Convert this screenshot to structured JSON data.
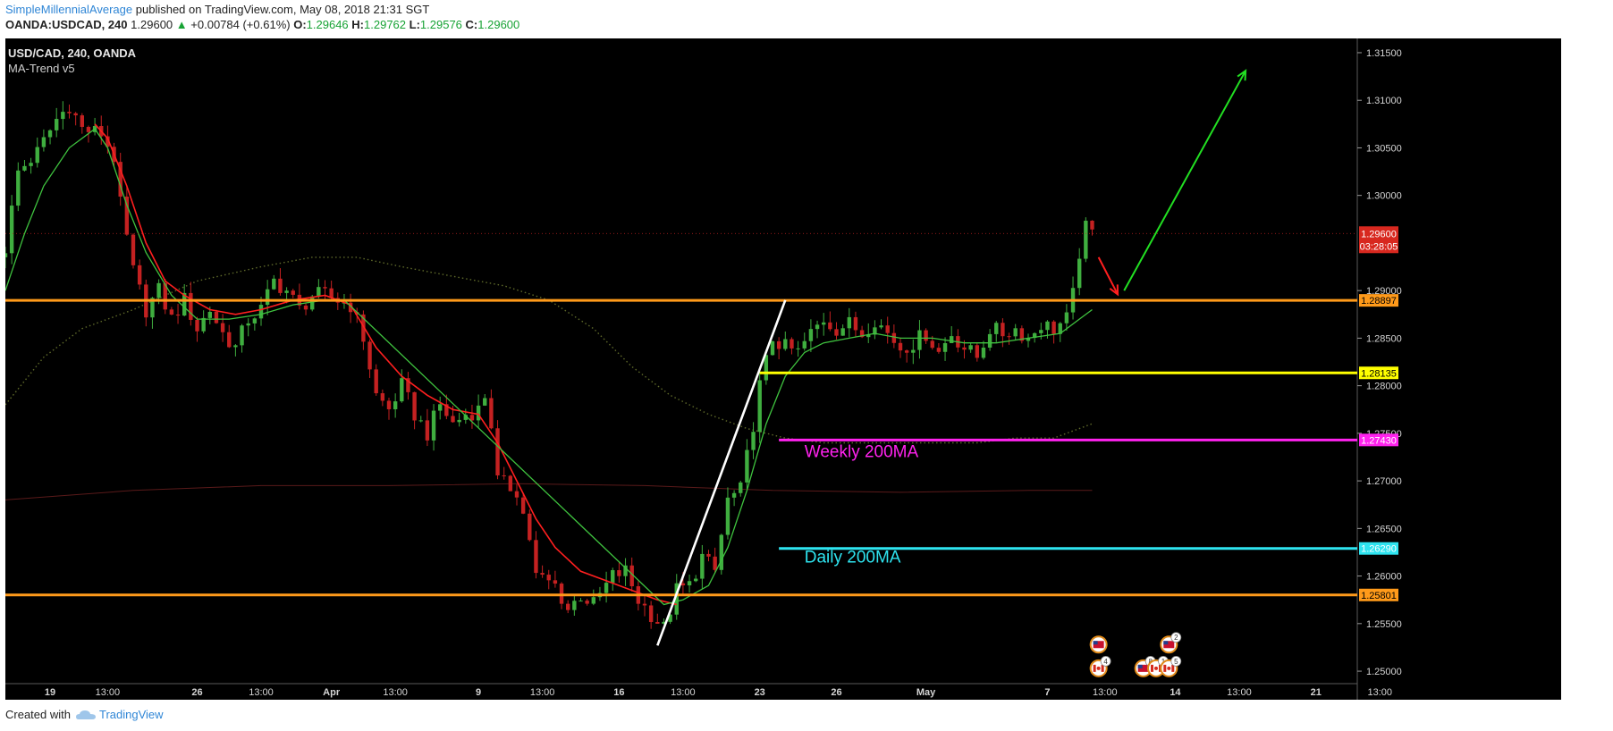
{
  "header": {
    "author": "SimpleMillennialAverage",
    "published_text": "published on TradingView.com, May 08, 2018 21:31 SGT",
    "symbol": "OANDA:USDCAD, 240",
    "last_price": "1.29600",
    "change": "+0.00784 (+0.61%)",
    "open_label": "O:",
    "open": "1.29646",
    "high_label": "H:",
    "high": "1.29762",
    "low_label": "L:",
    "low": "1.29576",
    "close_label": "C:",
    "close": "1.29600"
  },
  "chart_title": "USD/CAD, 240, OANDA",
  "indicator_name": "MA-Trend v5",
  "footer": {
    "created_with": "Created with",
    "brand": "TradingView"
  },
  "colors": {
    "background": "#000000",
    "up_candle": "#3fae3f",
    "down_candle": "#c42121",
    "support": "#ff9a1a",
    "mid_support": "#ffff00",
    "weekly_ma": "#ff22ee",
    "daily_ma": "#2ee4f0",
    "fast_ma": "#ff1f1f",
    "slow_ma": "#3fc33f",
    "arrow_up": "#22e022",
    "arrow_down": "#ff1f1f",
    "trendline": "#ffffff"
  },
  "chart_data": {
    "type": "candlestick",
    "title": "USD/CAD, 240, OANDA",
    "ylim": [
      1.247,
      1.3165
    ],
    "y_ticks": [
      "1.31500",
      "1.31000",
      "1.30500",
      "1.30000",
      "1.29000",
      "1.28500",
      "1.28000",
      "1.27500",
      "1.27000",
      "1.26500",
      "1.26000",
      "1.25500",
      "1.25000"
    ],
    "x_ticks": [
      {
        "label": "19",
        "i": 7
      },
      {
        "label": "13:00",
        "i": 16
      },
      {
        "label": "26",
        "i": 30
      },
      {
        "label": "13:00",
        "i": 40
      },
      {
        "label": "Apr",
        "i": 51
      },
      {
        "label": "13:00",
        "i": 61
      },
      {
        "label": "9",
        "i": 74
      },
      {
        "label": "13:00",
        "i": 84
      },
      {
        "label": "16",
        "i": 96
      },
      {
        "label": "13:00",
        "i": 106
      },
      {
        "label": "23",
        "i": 118
      },
      {
        "label": "26",
        "i": 130
      },
      {
        "label": "May",
        "i": 144
      },
      {
        "label": "7",
        "i": 163
      },
      {
        "label": "13:00",
        "i": 172
      },
      {
        "label": "14",
        "i": 183
      },
      {
        "label": "13:00",
        "i": 193
      },
      {
        "label": "21",
        "i": 205
      },
      {
        "label": "13:00",
        "i": 215
      }
    ],
    "close_path": [
      [
        0,
        1.2945
      ],
      [
        2,
        1.3025
      ],
      [
        5,
        1.3045
      ],
      [
        8,
        1.308
      ],
      [
        10,
        1.3095
      ],
      [
        12,
        1.307
      ],
      [
        15,
        1.3065
      ],
      [
        17,
        1.304
      ],
      [
        18,
        1.299
      ],
      [
        20,
        1.292
      ],
      [
        22,
        1.288
      ],
      [
        24,
        1.29
      ],
      [
        26,
        1.287
      ],
      [
        28,
        1.289
      ],
      [
        30,
        1.286
      ],
      [
        32,
        1.288
      ],
      [
        34,
        1.2855
      ],
      [
        36,
        1.284
      ],
      [
        38,
        1.287
      ],
      [
        40,
        1.288
      ],
      [
        42,
        1.291
      ],
      [
        44,
        1.29
      ],
      [
        46,
        1.288
      ],
      [
        48,
        1.2895
      ],
      [
        50,
        1.2895
      ],
      [
        52,
        1.289
      ],
      [
        54,
        1.2885
      ],
      [
        56,
        1.285
      ],
      [
        58,
        1.279
      ],
      [
        60,
        1.2775
      ],
      [
        62,
        1.28
      ],
      [
        64,
        1.277
      ],
      [
        66,
        1.275
      ],
      [
        68,
        1.278
      ],
      [
        70,
        1.276
      ],
      [
        72,
        1.277
      ],
      [
        74,
        1.2775
      ],
      [
        75,
        1.279
      ],
      [
        76,
        1.276
      ],
      [
        77,
        1.27
      ],
      [
        80,
        1.269
      ],
      [
        82,
        1.264
      ],
      [
        83,
        1.26
      ],
      [
        86,
        1.259
      ],
      [
        88,
        1.2565
      ],
      [
        90,
        1.258
      ],
      [
        92,
        1.257
      ],
      [
        95,
        1.26
      ],
      [
        97,
        1.2605
      ],
      [
        99,
        1.2575
      ],
      [
        101,
        1.256
      ],
      [
        103,
        1.2545
      ],
      [
        105,
        1.2585
      ],
      [
        107,
        1.259
      ],
      [
        109,
        1.262
      ],
      [
        111,
        1.2605
      ],
      [
        113,
        1.268
      ],
      [
        115,
        1.269
      ],
      [
        117,
        1.276
      ],
      [
        118,
        1.28
      ],
      [
        120,
        1.285
      ],
      [
        122,
        1.284
      ],
      [
        124,
        1.2835
      ],
      [
        126,
        1.2855
      ],
      [
        128,
        1.287
      ],
      [
        130,
        1.286
      ],
      [
        132,
        1.2865
      ],
      [
        134,
        1.2855
      ],
      [
        136,
        1.287
      ],
      [
        138,
        1.2855
      ],
      [
        140,
        1.284
      ],
      [
        142,
        1.2845
      ],
      [
        144,
        1.2855
      ],
      [
        146,
        1.2835
      ],
      [
        148,
        1.2855
      ],
      [
        150,
        1.284
      ],
      [
        152,
        1.283
      ],
      [
        154,
        1.286
      ],
      [
        156,
        1.2855
      ],
      [
        158,
        1.286
      ],
      [
        160,
        1.285
      ],
      [
        162,
        1.2865
      ],
      [
        164,
        1.286
      ],
      [
        166,
        1.287
      ],
      [
        167,
        1.2895
      ],
      [
        168,
        1.294
      ],
      [
        169,
        1.2965
      ],
      [
        170,
        1.296
      ]
    ],
    "fast_ma": [
      [
        14,
        1.3075
      ],
      [
        16,
        1.306
      ],
      [
        19,
        1.301
      ],
      [
        22,
        1.295
      ],
      [
        25,
        1.291
      ],
      [
        28,
        1.2895
      ],
      [
        32,
        1.288
      ],
      [
        36,
        1.2875
      ],
      [
        40,
        1.288
      ],
      [
        45,
        1.289
      ],
      [
        50,
        1.2895
      ],
      [
        54,
        1.2885
      ],
      [
        58,
        1.284
      ],
      [
        62,
        1.281
      ],
      [
        66,
        1.279
      ],
      [
        70,
        1.2775
      ],
      [
        74,
        1.277
      ],
      [
        77,
        1.274
      ],
      [
        80,
        1.27
      ],
      [
        83,
        1.266
      ],
      [
        86,
        1.263
      ],
      [
        90,
        1.2605
      ],
      [
        94,
        1.2595
      ],
      [
        98,
        1.2585
      ],
      [
        102,
        1.2575
      ],
      [
        105,
        1.257
      ]
    ],
    "slow_ma": [
      [
        0,
        1.29
      ],
      [
        3,
        1.296
      ],
      [
        6,
        1.301
      ],
      [
        10,
        1.305
      ],
      [
        14,
        1.307
      ],
      [
        16,
        1.305
      ],
      [
        19,
        1.299
      ],
      [
        22,
        1.294
      ],
      [
        26,
        1.2895
      ],
      [
        30,
        1.287
      ],
      [
        35,
        1.287
      ],
      [
        40,
        1.2875
      ],
      [
        45,
        1.2885
      ],
      [
        50,
        1.289
      ],
      [
        53,
        1.289
      ],
      [
        103,
        1.257
      ],
      [
        106,
        1.2575
      ],
      [
        110,
        1.259
      ],
      [
        113,
        1.263
      ],
      [
        116,
        1.269
      ],
      [
        119,
        1.276
      ],
      [
        122,
        1.281
      ],
      [
        125,
        1.2835
      ],
      [
        128,
        1.2845
      ],
      [
        132,
        1.285
      ],
      [
        136,
        1.2855
      ],
      [
        140,
        1.285
      ],
      [
        145,
        1.285
      ],
      [
        150,
        1.2845
      ],
      [
        155,
        1.2845
      ],
      [
        160,
        1.285
      ],
      [
        165,
        1.2855
      ],
      [
        168,
        1.287
      ],
      [
        170,
        1.288
      ]
    ],
    "ma_100": [
      [
        0,
        1.278
      ],
      [
        6,
        1.283
      ],
      [
        12,
        1.286
      ],
      [
        20,
        1.288
      ],
      [
        30,
        1.291
      ],
      [
        40,
        1.2925
      ],
      [
        48,
        1.2935
      ],
      [
        55,
        1.2935
      ],
      [
        62,
        1.2925
      ],
      [
        70,
        1.2915
      ],
      [
        78,
        1.2905
      ],
      [
        85,
        1.289
      ],
      [
        92,
        1.286
      ],
      [
        98,
        1.282
      ],
      [
        104,
        1.279
      ],
      [
        110,
        1.277
      ],
      [
        116,
        1.2755
      ],
      [
        122,
        1.2745
      ],
      [
        128,
        1.274
      ],
      [
        134,
        1.274
      ],
      [
        140,
        1.274
      ],
      [
        146,
        1.274
      ],
      [
        152,
        1.274
      ],
      [
        158,
        1.2745
      ],
      [
        164,
        1.2745
      ],
      [
        170,
        1.276
      ]
    ],
    "ma_200": [
      [
        0,
        1.268
      ],
      [
        20,
        1.269
      ],
      [
        40,
        1.2695
      ],
      [
        60,
        1.2695
      ],
      [
        80,
        1.2697
      ],
      [
        100,
        1.2695
      ],
      [
        120,
        1.269
      ],
      [
        140,
        1.2688
      ],
      [
        160,
        1.269
      ],
      [
        170,
        1.269
      ]
    ],
    "last_price_line": 1.296,
    "levels": [
      {
        "price": 1.28897,
        "label": "1.28897",
        "color_key": "support",
        "from_i": -1
      },
      {
        "price": 1.25801,
        "label": "1.25801",
        "color_key": "support",
        "from_i": -1
      },
      {
        "price": 1.28135,
        "label": "1.28135",
        "color_key": "mid_support",
        "from_i": 118
      },
      {
        "price": 1.2743,
        "label": "1.27430",
        "color_key": "weekly_ma",
        "from_i": 121
      },
      {
        "price": 1.2629,
        "label": "1.26290",
        "color_key": "daily_ma",
        "from_i": 121
      }
    ],
    "price_tag": {
      "price": 1.296,
      "label": "1.29600"
    },
    "countdown": "03:28:05",
    "annotations": [
      {
        "text": "Weekly 200MA",
        "i": 125,
        "price": 1.2725,
        "color_key": "weekly_ma"
      },
      {
        "text": "Daily 200MA",
        "i": 125,
        "price": 1.2614,
        "color_key": "daily_ma"
      }
    ],
    "trendline": [
      [
        102,
        1.2527
      ],
      [
        122,
        1.289
      ]
    ],
    "arrow_down": [
      [
        171,
        1.2935
      ],
      [
        174,
        1.2896
      ]
    ],
    "arrow_up": [
      [
        175,
        1.29
      ],
      [
        194,
        1.3131
      ]
    ],
    "event_markers": [
      {
        "i": 171,
        "price": 1.2528,
        "kind": "flag-us",
        "count": ""
      },
      {
        "i": 171,
        "price": 1.2503,
        "kind": "flag-ca",
        "count": "4"
      },
      {
        "i": 178,
        "price": 1.2503,
        "kind": "flag-us",
        "count": "8"
      },
      {
        "i": 180,
        "price": 1.2503,
        "kind": "flag-ca",
        "count": "1"
      },
      {
        "i": 182,
        "price": 1.2528,
        "kind": "flag-us",
        "count": "2"
      },
      {
        "i": 182,
        "price": 1.2503,
        "kind": "flag-ca",
        "count": "5"
      }
    ]
  }
}
